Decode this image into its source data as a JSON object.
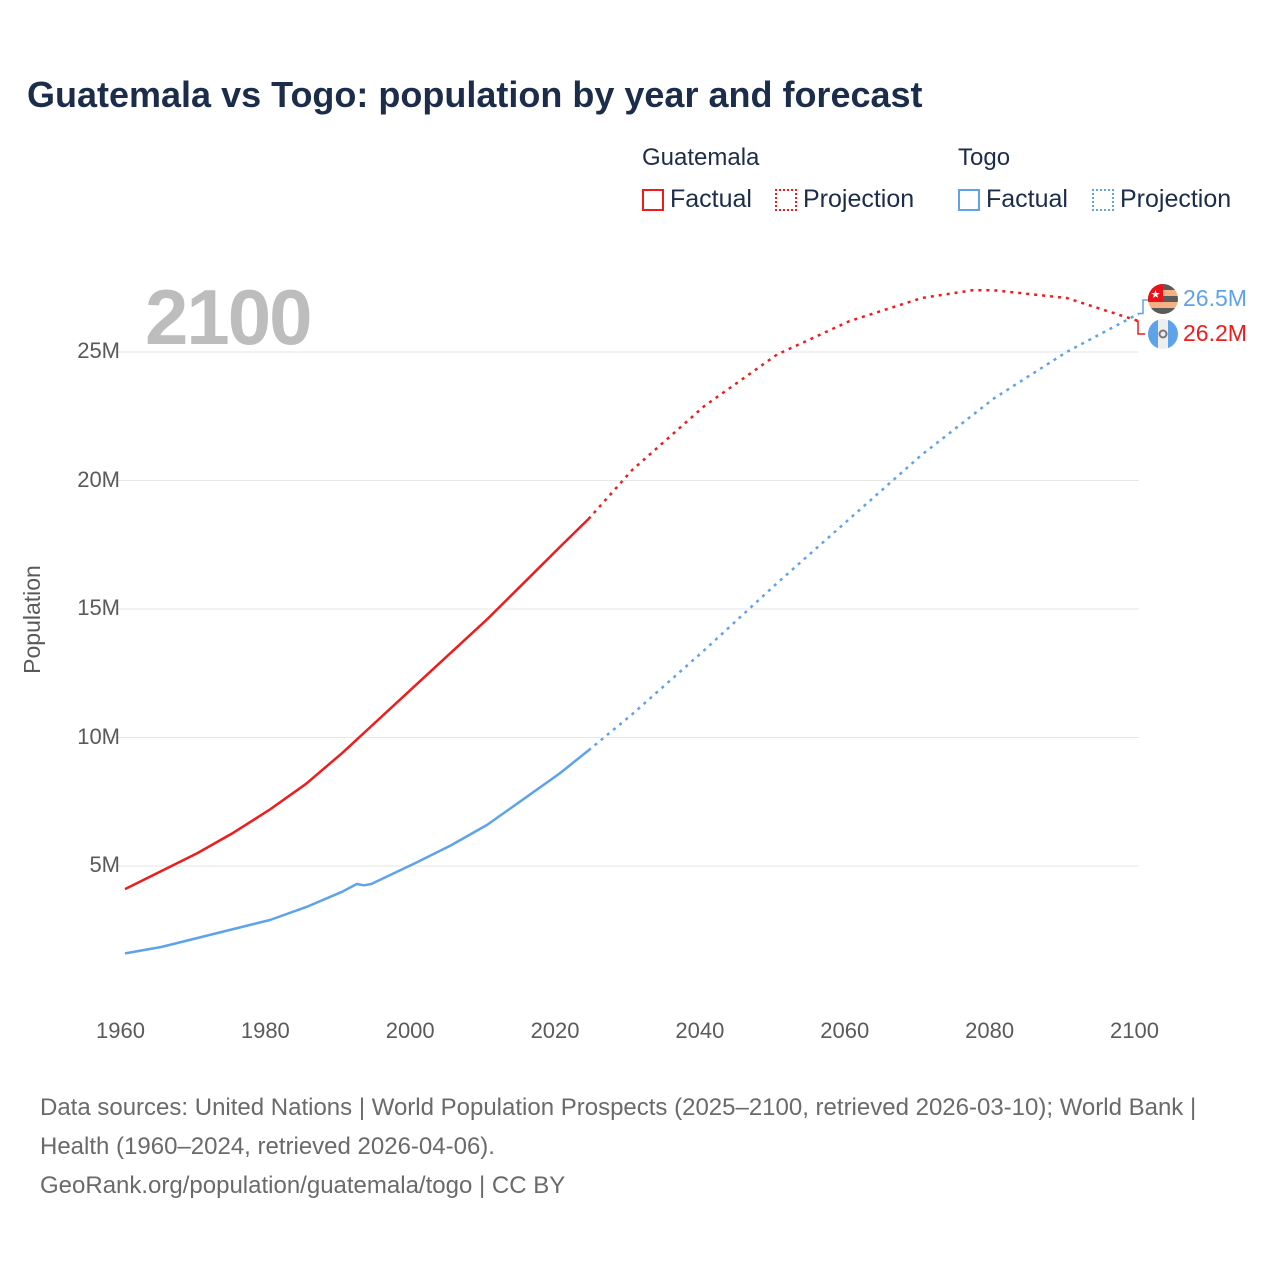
{
  "chart_data": {
    "type": "line",
    "title": "Guatemala vs Togo: population by year and forecast",
    "ylabel": "Population",
    "xlabel": "",
    "xlim": [
      1960,
      2100
    ],
    "ylim": [
      0,
      27.5
    ],
    "x_ticks": [
      "1960",
      "1980",
      "2000",
      "2020",
      "2040",
      "2060",
      "2080",
      "2100"
    ],
    "y_ticks": [
      {
        "v": 5,
        "label": "5M"
      },
      {
        "v": 10,
        "label": "10M"
      },
      {
        "v": 15,
        "label": "15M"
      },
      {
        "v": 20,
        "label": "20M"
      },
      {
        "v": 25,
        "label": "25M"
      }
    ],
    "current_year": "2100",
    "legend": {
      "groups": [
        {
          "name": "Guatemala",
          "factual": "Factual",
          "projection": "Projection"
        },
        {
          "name": "Togo",
          "factual": "Factual",
          "projection": "Projection"
        }
      ],
      "placement": "top-right"
    },
    "series": [
      {
        "name": "Guatemala",
        "color": "#ee1c1c",
        "unit": "millions",
        "factual": {
          "x": [
            1960,
            1965,
            1970,
            1975,
            1980,
            1985,
            1990,
            1995,
            2000,
            2005,
            2010,
            2015,
            2020,
            2024
          ],
          "y": [
            4.1,
            4.8,
            5.5,
            6.3,
            7.2,
            8.2,
            9.4,
            10.7,
            12.0,
            13.3,
            14.6,
            16.0,
            17.4,
            18.5
          ]
        },
        "projection": {
          "x": [
            2024,
            2030,
            2040,
            2050,
            2060,
            2070,
            2077,
            2080,
            2090,
            2100
          ],
          "y": [
            18.5,
            20.4,
            22.9,
            24.9,
            26.2,
            27.1,
            27.4,
            27.4,
            27.1,
            26.2
          ]
        },
        "end_label": "26.2M"
      },
      {
        "name": "Togo",
        "color": "#5ea3ea",
        "unit": "millions",
        "factual": {
          "x": [
            1960,
            1965,
            1970,
            1975,
            1980,
            1985,
            1990,
            1992,
            1993,
            1994,
            2000,
            2005,
            2010,
            2015,
            2020,
            2024
          ],
          "y": [
            1.6,
            1.85,
            2.2,
            2.55,
            2.9,
            3.4,
            4.0,
            4.3,
            4.25,
            4.3,
            5.1,
            5.8,
            6.6,
            7.6,
            8.6,
            9.5
          ]
        },
        "projection": {
          "x": [
            2024,
            2030,
            2040,
            2050,
            2060,
            2070,
            2080,
            2090,
            2100
          ],
          "y": [
            9.5,
            10.9,
            13.4,
            16.0,
            18.5,
            21.0,
            23.2,
            25.0,
            26.5
          ]
        },
        "end_label": "26.5M"
      }
    ]
  },
  "footer": {
    "sources": "Data sources: United Nations | World Population Prospects (2025–2100, retrieved 2026-03-10); World Bank | Health (1960–2024, retrieved 2026-04-06).",
    "credit": "GeoRank.org/population/guatemala/togo | CC BY"
  }
}
